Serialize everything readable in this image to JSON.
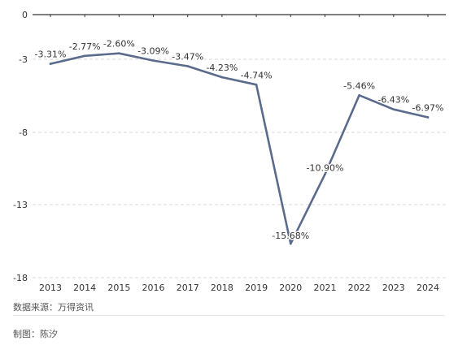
{
  "chart_data": {
    "type": "line",
    "title": "",
    "xlabel": "",
    "ylabel": "",
    "categories": [
      "2013",
      "2014",
      "2015",
      "2016",
      "2017",
      "2018",
      "2019",
      "2020",
      "2021",
      "2022",
      "2023",
      "2024"
    ],
    "series": [
      {
        "values": [
          -3.31,
          -2.77,
          -2.6,
          -3.09,
          -3.47,
          -4.23,
          -4.74,
          -15.68,
          -10.9,
          -5.46,
          -6.43,
          -6.97
        ],
        "labels": [
          "-3.31%",
          "-2.77%",
          "-2.60%",
          "-3.09%",
          "-3.47%",
          "-4.23%",
          "-4.74%",
          "-15.68%",
          "-10.90%",
          "-5.46%",
          "-6.43%",
          "-6.97%"
        ],
        "color": "#5b6b8c"
      }
    ],
    "ylim": [
      -18,
      0
    ],
    "yticks": [
      0,
      -3,
      -8,
      -13,
      -18
    ],
    "ytick_labels": [
      "0",
      "-3",
      "-8",
      "-13",
      "-18"
    ],
    "grid": "horizontal dashed",
    "legend": "none"
  },
  "footer": {
    "source": "数据来源：万得资讯",
    "author": "制图：陈汐"
  },
  "colors": {
    "line": "#5b6b8c",
    "axis": "#333333",
    "grid": "#d9d9d9"
  }
}
